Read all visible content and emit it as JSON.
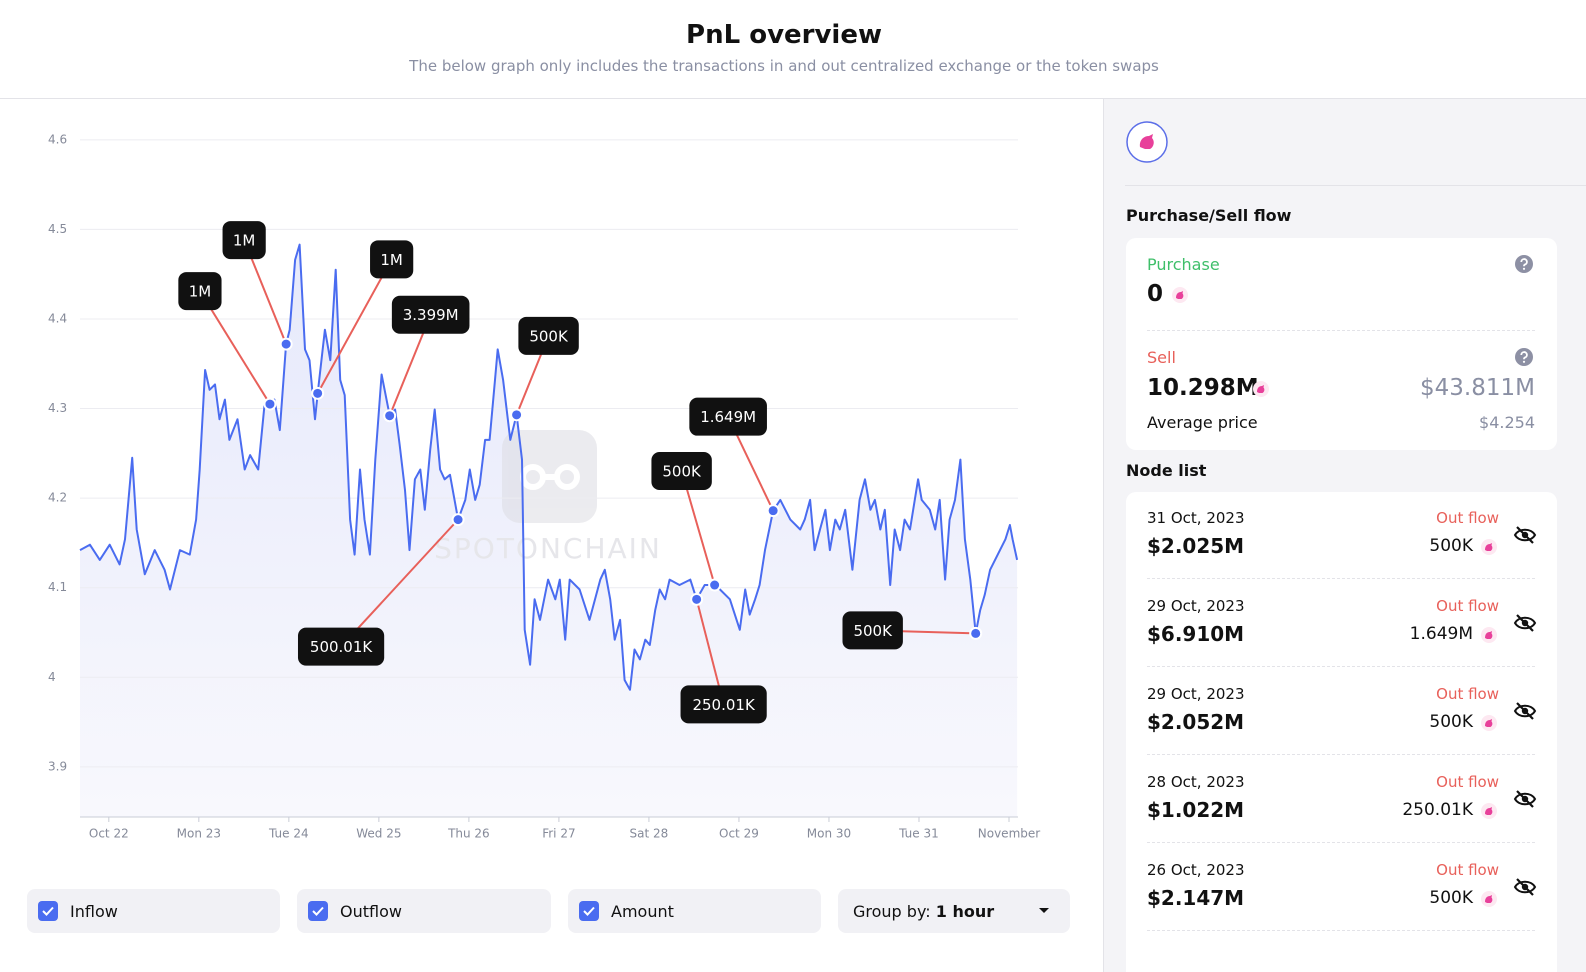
{
  "header": {
    "title": "PnL overview",
    "subtitle": "The below graph only includes the transactions in and out centralized exchange or the token swaps"
  },
  "chart_data": {
    "type": "line",
    "color": "#4a6cf0",
    "grid": true,
    "watermark": "SPOTONCHAIN",
    "xlim": [
      21.68,
      32.1
    ],
    "ylim": [
      3.844,
      4.611
    ],
    "xticks": [
      {
        "value": 22,
        "label": "Oct 22"
      },
      {
        "value": 23,
        "label": "Mon 23"
      },
      {
        "value": 24,
        "label": "Tue 24"
      },
      {
        "value": 25,
        "label": "Wed 25"
      },
      {
        "value": 26,
        "label": "Thu 26"
      },
      {
        "value": 27,
        "label": "Fri 27"
      },
      {
        "value": 28,
        "label": "Sat 28"
      },
      {
        "value": 29,
        "label": "Oct 29"
      },
      {
        "value": 30,
        "label": "Mon 30"
      },
      {
        "value": 31,
        "label": "Tue 31"
      },
      {
        "value": 32,
        "label": "November"
      }
    ],
    "yticks": [
      3.9,
      4,
      4.1,
      4.2,
      4.3,
      4.4,
      4.5,
      4.6
    ],
    "x": [
      21.68,
      21.79,
      21.9,
      22.01,
      22.12,
      22.18,
      22.26,
      22.31,
      22.4,
      22.51,
      22.62,
      22.68,
      22.79,
      22.9,
      22.97,
      23.01,
      23.07,
      23.12,
      23.18,
      23.23,
      23.29,
      23.34,
      23.43,
      23.51,
      23.57,
      23.66,
      23.73,
      23.79,
      23.84,
      23.9,
      23.97,
      24.01,
      24.07,
      24.12,
      24.18,
      24.23,
      24.29,
      24.32,
      24.4,
      24.46,
      24.52,
      24.57,
      24.62,
      24.68,
      24.73,
      24.79,
      24.84,
      24.9,
      24.96,
      25.03,
      25.12,
      25.18,
      25.23,
      25.29,
      25.34,
      25.4,
      25.46,
      25.51,
      25.57,
      25.62,
      25.68,
      25.73,
      25.79,
      25.88,
      25.96,
      26.01,
      26.07,
      26.12,
      26.18,
      26.23,
      26.29,
      26.32,
      26.38,
      26.46,
      26.53,
      26.59,
      26.62,
      26.68,
      26.73,
      26.79,
      26.88,
      26.96,
      27.01,
      27.07,
      27.12,
      27.23,
      27.34,
      27.46,
      27.51,
      27.57,
      27.62,
      27.68,
      27.73,
      27.79,
      27.84,
      27.9,
      27.96,
      28.01,
      28.07,
      28.12,
      28.18,
      28.23,
      28.34,
      28.46,
      28.53,
      28.62,
      28.73,
      28.79,
      28.9,
      29.01,
      29.07,
      29.12,
      29.18,
      29.23,
      29.29,
      29.38,
      29.46,
      29.57,
      29.68,
      29.73,
      29.79,
      29.84,
      29.9,
      29.96,
      30.01,
      30.07,
      30.12,
      30.18,
      30.26,
      30.34,
      30.4,
      30.46,
      30.51,
      30.57,
      30.62,
      30.68,
      30.73,
      30.79,
      30.84,
      30.9,
      30.99,
      31.03,
      31.12,
      31.18,
      31.23,
      31.29,
      31.34,
      31.4,
      31.46,
      31.51,
      31.57,
      31.63,
      31.68,
      31.73,
      31.79,
      31.9,
      31.96,
      32.01,
      32.04,
      32.09
    ],
    "values": [
      4.142,
      4.148,
      4.131,
      4.148,
      4.126,
      4.154,
      4.245,
      4.165,
      4.115,
      4.142,
      4.12,
      4.098,
      4.142,
      4.137,
      4.176,
      4.232,
      4.343,
      4.321,
      4.327,
      4.288,
      4.31,
      4.265,
      4.288,
      4.232,
      4.248,
      4.232,
      4.304,
      4.305,
      4.31,
      4.276,
      4.372,
      4.388,
      4.466,
      4.483,
      4.366,
      4.354,
      4.288,
      4.317,
      4.388,
      4.354,
      4.455,
      4.332,
      4.315,
      4.176,
      4.137,
      4.232,
      4.176,
      4.137,
      4.243,
      4.338,
      4.292,
      4.299,
      4.26,
      4.209,
      4.142,
      4.221,
      4.232,
      4.187,
      4.254,
      4.299,
      4.232,
      4.221,
      4.226,
      4.176,
      4.198,
      4.232,
      4.198,
      4.215,
      4.265,
      4.265,
      4.332,
      4.366,
      4.332,
      4.265,
      4.293,
      4.243,
      4.053,
      4.014,
      4.087,
      4.064,
      4.109,
      4.087,
      4.109,
      4.042,
      4.109,
      4.098,
      4.064,
      4.109,
      4.12,
      4.087,
      4.042,
      4.064,
      3.997,
      3.986,
      4.031,
      4.02,
      4.042,
      4.036,
      4.075,
      4.098,
      4.087,
      4.109,
      4.103,
      4.109,
      4.087,
      4.103,
      4.103,
      4.098,
      4.087,
      4.053,
      4.098,
      4.07,
      4.087,
      4.103,
      4.142,
      4.186,
      4.198,
      4.176,
      4.165,
      4.176,
      4.198,
      4.142,
      4.165,
      4.187,
      4.142,
      4.176,
      4.165,
      4.187,
      4.12,
      4.198,
      4.221,
      4.187,
      4.198,
      4.165,
      4.187,
      4.103,
      4.165,
      4.142,
      4.176,
      4.165,
      4.221,
      4.198,
      4.187,
      4.165,
      4.198,
      4.109,
      4.176,
      4.198,
      4.243,
      4.154,
      4.109,
      4.049,
      4.075,
      4.092,
      4.12,
      4.142,
      4.154,
      4.17,
      4.154,
      4.131
    ],
    "flow_markers": [
      {
        "x": 23.79,
        "y": 4.305,
        "label": "1M"
      },
      {
        "x": 23.97,
        "y": 4.372,
        "label": "1M"
      },
      {
        "x": 24.32,
        "y": 4.317,
        "label": "1M"
      },
      {
        "x": 25.12,
        "y": 4.292,
        "label": "3.399M"
      },
      {
        "x": 26.53,
        "y": 4.293,
        "label": "500K"
      },
      {
        "x": 25.88,
        "y": 4.176,
        "label": "500.01K"
      },
      {
        "x": 28.73,
        "y": 4.103,
        "label": "500K"
      },
      {
        "x": 29.38,
        "y": 4.186,
        "label": "1.649M"
      },
      {
        "x": 28.53,
        "y": 4.087,
        "label": "250.01K"
      },
      {
        "x": 31.63,
        "y": 4.049,
        "label": "500K"
      }
    ]
  },
  "controls": {
    "checkboxes": [
      "Inflow",
      "Outflow",
      "Amount"
    ],
    "group_by": {
      "label": "Group by:",
      "value": "1 hour"
    }
  },
  "sidebar": {
    "flow_title": "Purchase/Sell flow",
    "purchase": {
      "label": "Purchase",
      "amount": "0"
    },
    "sell": {
      "label": "Sell",
      "amount": "10.298M",
      "usd": "$43.811M",
      "avg_label": "Average price",
      "avg": "$4.254"
    },
    "node_title": "Node list",
    "nodes": [
      {
        "date": "31 Oct, 2023",
        "value": "$2.025M",
        "flow": "Out flow",
        "amount": "500K"
      },
      {
        "date": "29 Oct, 2023",
        "value": "$6.910M",
        "flow": "Out flow",
        "amount": "1.649M"
      },
      {
        "date": "29 Oct, 2023",
        "value": "$2.052M",
        "flow": "Out flow",
        "amount": "500K"
      },
      {
        "date": "28 Oct, 2023",
        "value": "$1.022M",
        "flow": "Out flow",
        "amount": "250.01K"
      },
      {
        "date": "26 Oct, 2023",
        "value": "$2.147M",
        "flow": "Out flow",
        "amount": "500K"
      }
    ]
  }
}
